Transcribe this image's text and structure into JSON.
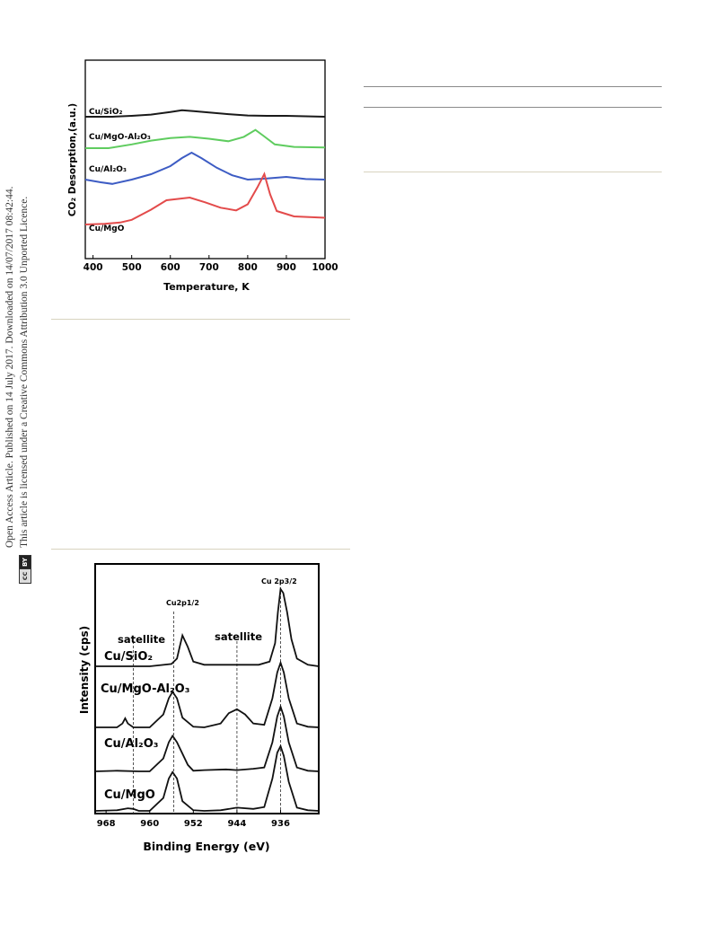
{
  "sidebar": {
    "license_line1": "Open Access Article. Published on 14 July 2017. Downloaded on 14/07/2017 08:42:44.",
    "license_line2": "This article is licensed under a Creative Commons Attribution 3.0 Unported Licence.",
    "badge_cc": "cc",
    "badge_by": "BY"
  },
  "chart_data": [
    {
      "type": "line",
      "xlabel": "Temperature, K",
      "ylabel": "CO₂ Desorption,(a.u.)",
      "xlim": [
        380,
        1000
      ],
      "xticks": [
        400,
        500,
        600,
        700,
        800,
        900,
        1000
      ],
      "grid": false,
      "series": [
        {
          "name": "Cu/SiO₂",
          "color": "#1a1a1a",
          "x": [
            380,
            450,
            500,
            550,
            600,
            630,
            660,
            700,
            750,
            800,
            850,
            900,
            950,
            1000
          ],
          "y": [
            0.0,
            0.0,
            0.02,
            0.05,
            0.11,
            0.15,
            0.13,
            0.1,
            0.06,
            0.03,
            0.02,
            0.02,
            0.01,
            0.0
          ]
        },
        {
          "name": "Cu/MgO-Al₂O₃",
          "color": "#5fcc5f",
          "x": [
            380,
            440,
            500,
            550,
            600,
            650,
            700,
            750,
            790,
            820,
            840,
            870,
            920,
            1000
          ],
          "y": [
            0.0,
            0.0,
            0.06,
            0.12,
            0.16,
            0.18,
            0.15,
            0.11,
            0.18,
            0.29,
            0.2,
            0.06,
            0.02,
            0.01
          ]
        },
        {
          "name": "Cu/Al₂O₃",
          "color": "#3d5cc4",
          "x": [
            380,
            420,
            450,
            500,
            550,
            600,
            630,
            655,
            680,
            720,
            760,
            800,
            850,
            900,
            950,
            1000
          ],
          "y": [
            0.0,
            -0.05,
            -0.08,
            0.0,
            0.1,
            0.25,
            0.4,
            0.5,
            0.4,
            0.22,
            0.08,
            0.0,
            0.02,
            0.05,
            0.01,
            0.0
          ]
        },
        {
          "name": "Cu/MgO",
          "color": "#e34b4b",
          "x": [
            380,
            430,
            470,
            500,
            550,
            590,
            620,
            650,
            690,
            730,
            770,
            800,
            825,
            843,
            858,
            875,
            920,
            1000
          ],
          "y": [
            0.0,
            0.01,
            0.03,
            0.07,
            0.22,
            0.36,
            0.38,
            0.4,
            0.33,
            0.25,
            0.21,
            0.3,
            0.55,
            0.75,
            0.45,
            0.2,
            0.12,
            0.1
          ]
        }
      ]
    },
    {
      "type": "line",
      "xlabel": "Binding Energy (eV)",
      "ylabel": "Intensity (cps)",
      "xlim": [
        970,
        929
      ],
      "xticks": [
        968,
        960,
        952,
        944,
        936
      ],
      "grid": false,
      "annotations": [
        {
          "text": "satellite",
          "x": 963
        },
        {
          "text": "satellite",
          "x": 944
        },
        {
          "text": "Cu2p1/2",
          "x": 955.8
        },
        {
          "text": "Cu 2p3/2",
          "x": 935.9
        }
      ],
      "series": [
        {
          "name": "Cu/SiO₂",
          "x": [
            970,
            960,
            956,
            955,
            954.5,
            954,
            953,
            952,
            950,
            945,
            940,
            938,
            937,
            936.5,
            936,
            935.5,
            934.8,
            934,
            933,
            931,
            929
          ],
          "y": [
            0.0,
            0.0,
            0.03,
            0.1,
            0.25,
            0.4,
            0.25,
            0.06,
            0.02,
            0.02,
            0.02,
            0.06,
            0.3,
            0.7,
            1.0,
            0.95,
            0.7,
            0.35,
            0.1,
            0.02,
            0.0
          ]
        },
        {
          "name": "Cu/MgO-Al₂O₃",
          "x": [
            970,
            966,
            965,
            964.5,
            964,
            963,
            960,
            957.5,
            956.5,
            955.8,
            955,
            954,
            952,
            950,
            947,
            945.5,
            944,
            942.5,
            941,
            939,
            937.5,
            936.6,
            936,
            935.4,
            934.5,
            933,
            931,
            929
          ],
          "y": [
            0.0,
            0.0,
            0.06,
            0.14,
            0.06,
            0.0,
            0.0,
            0.2,
            0.45,
            0.55,
            0.45,
            0.15,
            0.01,
            0.0,
            0.06,
            0.22,
            0.28,
            0.2,
            0.06,
            0.04,
            0.45,
            0.85,
            1.0,
            0.85,
            0.45,
            0.06,
            0.01,
            0.0
          ]
        },
        {
          "name": "Cu/Al₂O₃",
          "x": [
            970,
            966,
            962,
            960,
            957.5,
            956.5,
            955.8,
            955,
            953,
            952,
            950,
            946,
            944,
            941,
            939,
            937.5,
            936.6,
            936,
            935.4,
            934.5,
            933,
            931,
            929
          ],
          "y": [
            0.0,
            0.01,
            0.0,
            0.0,
            0.2,
            0.45,
            0.55,
            0.45,
            0.1,
            0.01,
            0.02,
            0.03,
            0.02,
            0.04,
            0.06,
            0.45,
            0.85,
            1.0,
            0.85,
            0.45,
            0.06,
            0.01,
            0.0
          ]
        },
        {
          "name": "Cu/MgO",
          "x": [
            970,
            966,
            964,
            963,
            962,
            960,
            957.5,
            956.5,
            955.8,
            955,
            954,
            952,
            950,
            947,
            944,
            941,
            939,
            937.5,
            936.6,
            936,
            935.4,
            934.5,
            933,
            931,
            929
          ],
          "y": [
            0.0,
            0.01,
            0.04,
            0.03,
            0.0,
            0.0,
            0.2,
            0.5,
            0.6,
            0.5,
            0.15,
            0.01,
            0.0,
            0.01,
            0.05,
            0.03,
            0.06,
            0.5,
            0.9,
            1.0,
            0.85,
            0.45,
            0.05,
            0.01,
            0.0
          ]
        }
      ]
    }
  ]
}
